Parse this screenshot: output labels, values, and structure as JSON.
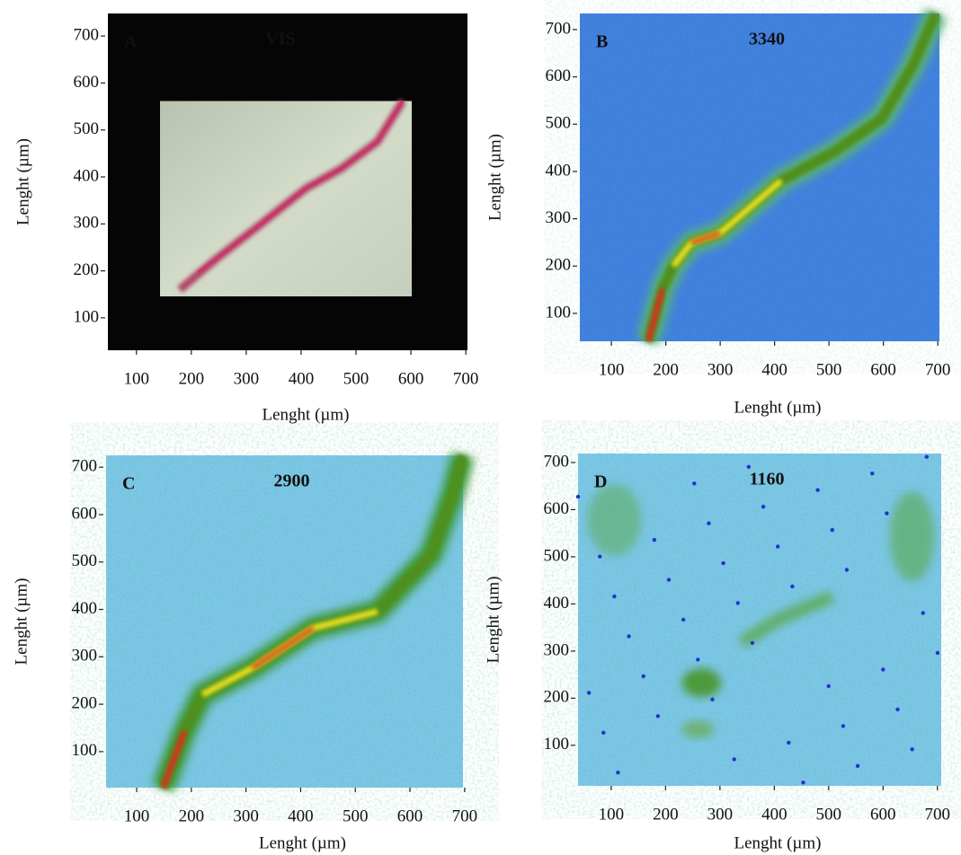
{
  "chart_data": [
    {
      "type": "image",
      "panel_label": "A",
      "title": "VIS",
      "xlabel": "Lenght (µm)",
      "ylabel": "Lenght (µm)",
      "xlim": [
        48,
        703
      ],
      "ylim": [
        31,
        748
      ],
      "xticks": [
        100,
        200,
        300,
        400,
        500,
        600,
        700
      ],
      "yticks": [
        100,
        200,
        300,
        400,
        500,
        600,
        700
      ]
    },
    {
      "type": "image",
      "panel_label": "B",
      "title": "3340",
      "xlabel": "Lenght (µm)",
      "ylabel": "Lenght (µm)",
      "xlim": [
        42,
        703
      ],
      "ylim": [
        41,
        734
      ],
      "xticks": [
        100,
        200,
        300,
        400,
        500,
        600,
        700
      ],
      "yticks": [
        100,
        200,
        300,
        400,
        500,
        600,
        700
      ]
    },
    {
      "type": "image",
      "panel_label": "C",
      "title": "2900",
      "xlabel": "Lenght (µm)",
      "ylabel": "Lenght (µm)",
      "xlim": [
        44,
        697
      ],
      "ylim": [
        24,
        725
      ],
      "xticks": [
        100,
        200,
        300,
        400,
        500,
        600,
        700
      ],
      "yticks": [
        100,
        200,
        300,
        400,
        500,
        600,
        700
      ]
    },
    {
      "type": "image",
      "panel_label": "D",
      "title": "1160",
      "xlabel": "Lenght (µm)",
      "ylabel": "Lenght (µm)",
      "xlim": [
        39,
        707
      ],
      "ylim": [
        14,
        719
      ],
      "xticks": [
        100,
        200,
        300,
        400,
        500,
        600,
        700
      ],
      "yticks": [
        100,
        200,
        300,
        400,
        500,
        600,
        700
      ]
    }
  ]
}
